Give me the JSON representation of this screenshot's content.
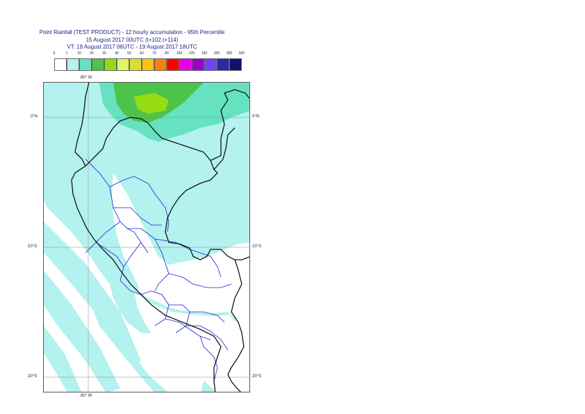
{
  "title": {
    "line1": "Point Rainfall (TEST PRODUCT) - 12 hourly accumulation - 95th Percentile",
    "line2": "15 August 2017 00UTC (t+102,t+114)",
    "line3": "VT: 19 August 2017 06UTC - 19 August 2017 18UTC"
  },
  "legend": {
    "thresholds": [
      "0",
      "1",
      "10",
      "20",
      "30",
      "40",
      "50",
      "60",
      "70",
      "80",
      "100",
      "125",
      "150",
      "200",
      "300",
      "500"
    ],
    "colors": [
      "#ffffff",
      "#b3f2ee",
      "#66e2c0",
      "#4ec34a",
      "#96dc14",
      "#e0f56a",
      "#d6e02c",
      "#ffc20e",
      "#ff7f0e",
      "#ff0000",
      "#e600e6",
      "#9a00cc",
      "#6e44ff",
      "#2a2aa8",
      "#12126e"
    ]
  },
  "map": {
    "lon_label_top": "80° W",
    "lon_label_bottom": "80° W",
    "lat_labels": [
      "0°N",
      "10°S",
      "20°S"
    ]
  }
}
